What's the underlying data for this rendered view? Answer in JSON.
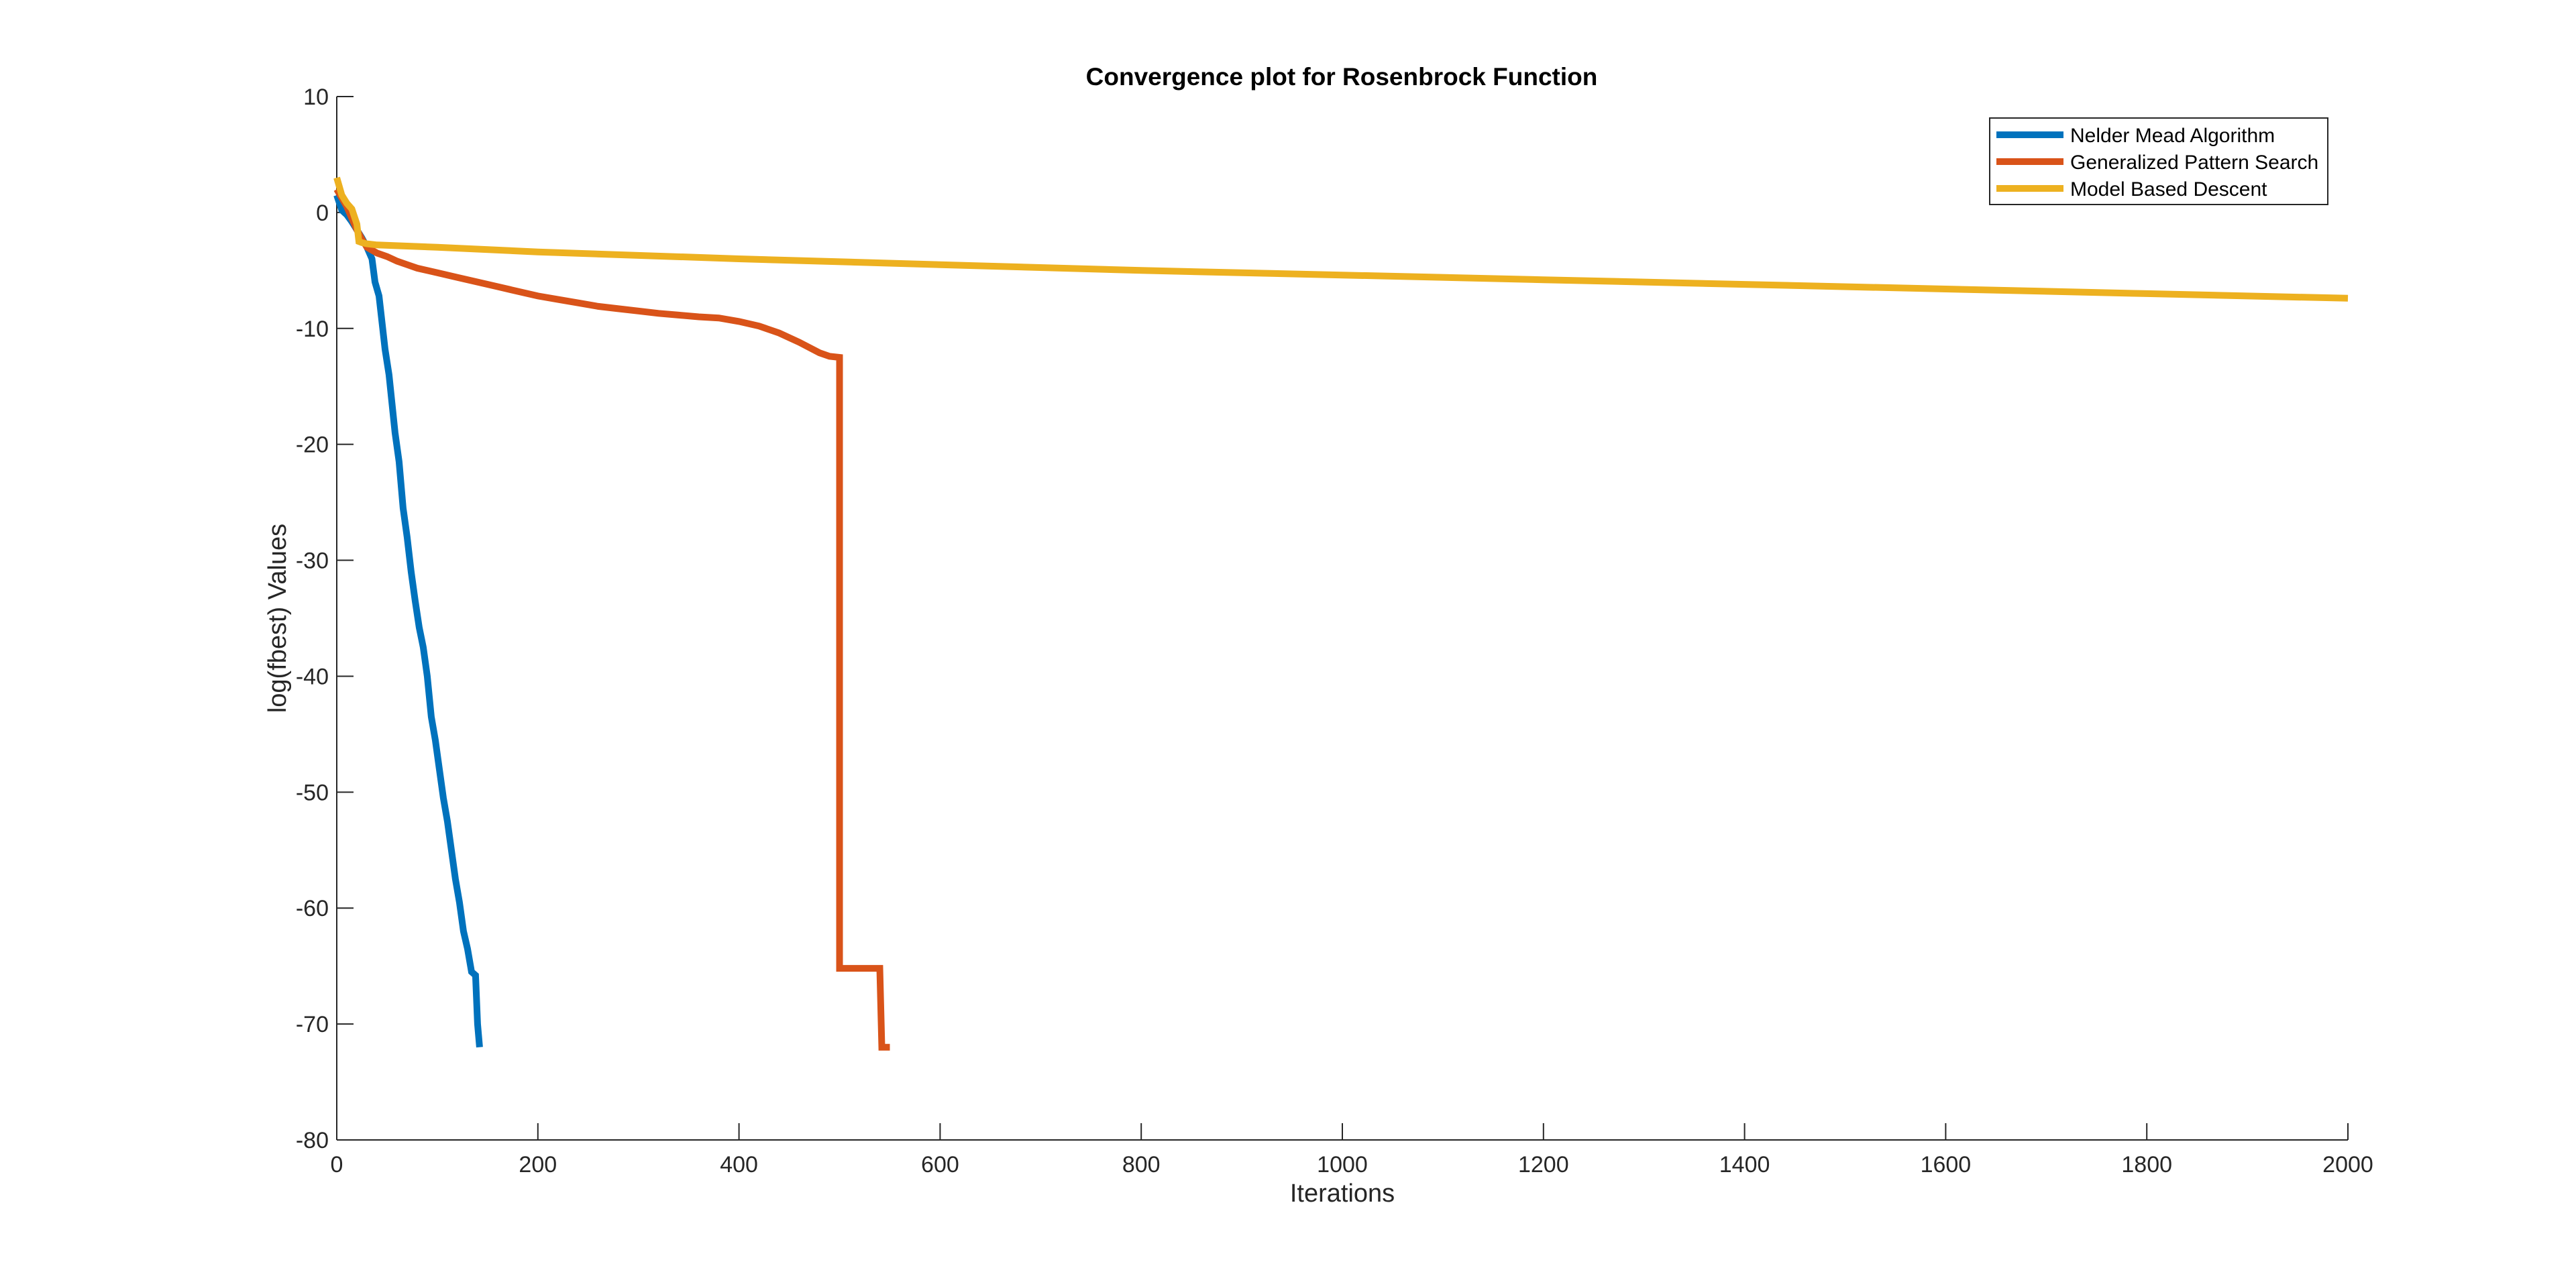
{
  "chart_data": {
    "type": "line",
    "title": "Convergence plot for Rosenbrock Function",
    "xlabel": "Iterations",
    "ylabel": "log(fbest) Values",
    "xlim": [
      0,
      2000
    ],
    "ylim": [
      -80,
      10
    ],
    "xticks": [
      0,
      200,
      400,
      600,
      800,
      1000,
      1200,
      1400,
      1600,
      1800,
      2000
    ],
    "yticks": [
      -80,
      -70,
      -60,
      -50,
      -40,
      -30,
      -20,
      -10,
      0,
      10
    ],
    "grid": false,
    "legend_position": "top-right",
    "series": [
      {
        "name": "Nelder Mead Algorithm",
        "color": "#0072BD",
        "x": [
          0,
          5,
          10,
          15,
          20,
          25,
          30,
          35,
          38,
          42,
          45,
          48,
          52,
          55,
          58,
          62,
          66,
          70,
          74,
          78,
          82,
          86,
          90,
          94,
          98,
          102,
          106,
          110,
          114,
          118,
          122,
          126,
          130,
          134,
          138,
          140,
          142
        ],
        "y": [
          1.5,
          0.2,
          -0.2,
          -0.8,
          -1.5,
          -2.2,
          -3.0,
          -4.0,
          -6.0,
          -7.2,
          -9.5,
          -11.8,
          -14.0,
          -16.5,
          -19.0,
          -21.5,
          -25.5,
          -28.0,
          -31.0,
          -33.5,
          -35.8,
          -37.5,
          -40.0,
          -43.5,
          -45.5,
          -48.0,
          -50.5,
          -52.5,
          -55.0,
          -57.5,
          -59.5,
          -62.0,
          -63.5,
          -65.5,
          -65.8,
          -70.0,
          -72.0
        ]
      },
      {
        "name": "Generalized Pattern Search",
        "color": "#D95319",
        "x": [
          0,
          10,
          20,
          25,
          30,
          40,
          50,
          60,
          70,
          80,
          100,
          120,
          140,
          160,
          180,
          200,
          220,
          240,
          260,
          280,
          300,
          320,
          340,
          360,
          380,
          400,
          420,
          440,
          460,
          480,
          490,
          500,
          500,
          502,
          540,
          542,
          550
        ],
        "y": [
          2.0,
          0.5,
          -1.5,
          -2.3,
          -3.0,
          -3.5,
          -3.8,
          -4.2,
          -4.5,
          -4.8,
          -5.2,
          -5.6,
          -6.0,
          -6.4,
          -6.8,
          -7.2,
          -7.5,
          -7.8,
          -8.1,
          -8.3,
          -8.5,
          -8.7,
          -8.85,
          -9.0,
          -9.1,
          -9.4,
          -9.8,
          -10.4,
          -11.2,
          -12.1,
          -12.4,
          -12.5,
          -65.2,
          -65.2,
          -65.2,
          -72.0,
          -72.0
        ]
      },
      {
        "name": "Model Based Descent",
        "color": "#EDB120",
        "x": [
          0,
          5,
          10,
          15,
          20,
          22,
          25,
          30,
          40,
          100,
          200,
          400,
          600,
          800,
          1000,
          1200,
          1400,
          1600,
          1800,
          2000
        ],
        "y": [
          3.0,
          1.5,
          0.8,
          0.3,
          -1.0,
          -2.5,
          -2.6,
          -2.7,
          -2.8,
          -3.0,
          -3.4,
          -4.0,
          -4.5,
          -5.0,
          -5.4,
          -5.8,
          -6.2,
          -6.6,
          -7.0,
          -7.4
        ]
      }
    ]
  }
}
